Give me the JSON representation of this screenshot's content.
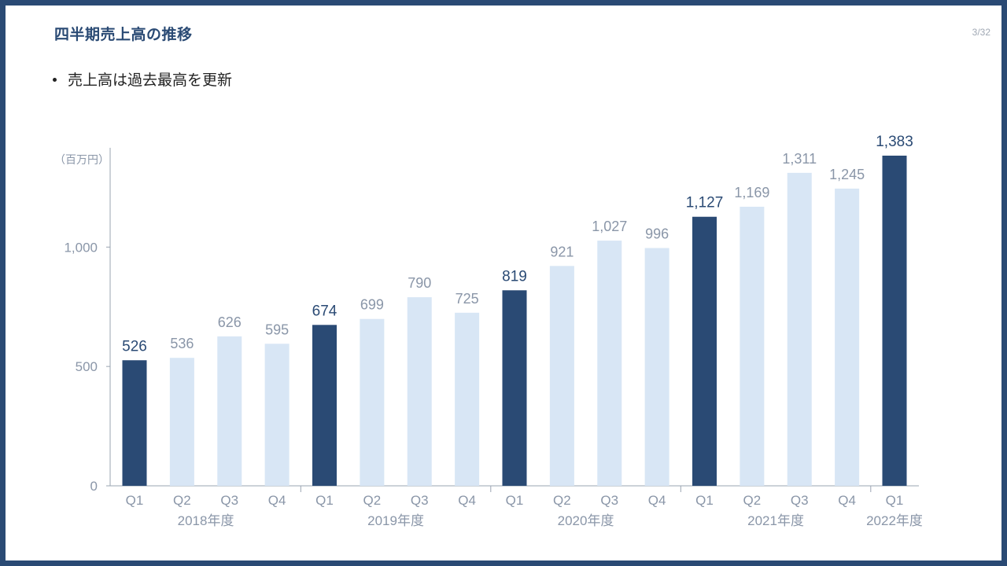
{
  "header": {
    "title": "四半期売上高の推移",
    "page_number": "3/32"
  },
  "body": {
    "bullets": [
      "売上高は過去最高を更新"
    ]
  },
  "colors": {
    "frame": "#2a4a74",
    "highlight_bar": "#2a4a74",
    "normal_bar": "#d8e6f5",
    "axis_text": "#8a96a8"
  },
  "chart_data": {
    "type": "bar",
    "unit_label": "（百万円）",
    "ylim": [
      0,
      1383
    ],
    "y_ticks": [
      {
        "value": 0,
        "label": "0"
      },
      {
        "value": 500,
        "label": "500"
      },
      {
        "value": 1000,
        "label": "1,000"
      }
    ],
    "grid": false,
    "legend": "none",
    "categories": [
      "Q1",
      "Q2",
      "Q3",
      "Q4",
      "Q1",
      "Q2",
      "Q3",
      "Q4",
      "Q1",
      "Q2",
      "Q3",
      "Q4",
      "Q1",
      "Q2",
      "Q3",
      "Q4",
      "Q1"
    ],
    "values": [
      526,
      536,
      626,
      595,
      674,
      699,
      790,
      725,
      819,
      921,
      1027,
      996,
      1127,
      1169,
      1311,
      1245,
      1383
    ],
    "value_labels": [
      "526",
      "536",
      "626",
      "595",
      "674",
      "699",
      "790",
      "725",
      "819",
      "921",
      "1,027",
      "996",
      "1,127",
      "1,169",
      "1,311",
      "1,245",
      "1,383"
    ],
    "highlighted": [
      true,
      false,
      false,
      false,
      true,
      false,
      false,
      false,
      true,
      false,
      false,
      false,
      true,
      false,
      false,
      false,
      true
    ],
    "groups": [
      {
        "label": "2018年度",
        "start": 0,
        "end": 3
      },
      {
        "label": "2019年度",
        "start": 4,
        "end": 7
      },
      {
        "label": "2020年度",
        "start": 8,
        "end": 11
      },
      {
        "label": "2021年度",
        "start": 12,
        "end": 15
      },
      {
        "label": "2022年度",
        "start": 16,
        "end": 16
      }
    ]
  }
}
